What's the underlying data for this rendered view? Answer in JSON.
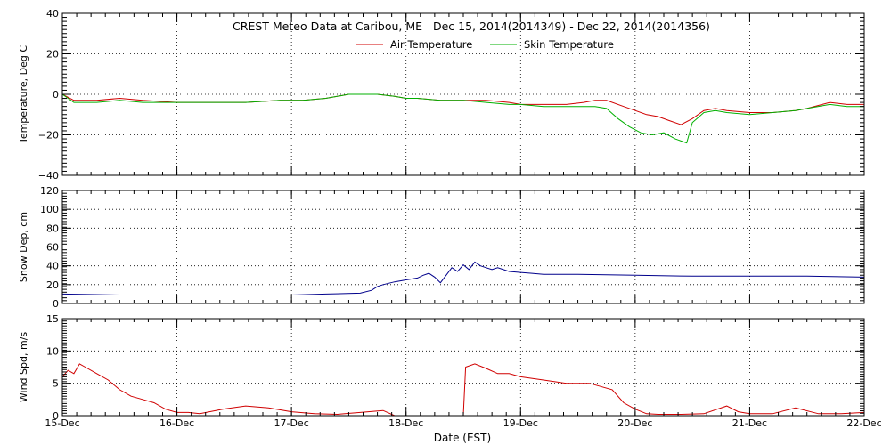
{
  "chart_data": {
    "type": "line",
    "title": "CREST Meteo Data at Caribou, ME   Dec 15, 2014(2014349) - Dec 22, 2014(2014356)",
    "xlabel": "Date (EST)",
    "x_tick_labels": [
      "15-Dec",
      "16-Dec",
      "17-Dec",
      "18-Dec",
      "19-Dec",
      "20-Dec",
      "21-Dec",
      "22-Dec"
    ],
    "xlim": [
      0,
      7
    ],
    "grid": "dotted",
    "legend_position": "top-center",
    "panels": [
      {
        "ylabel": "Temperature, Deg C",
        "ylim": [
          -40,
          40
        ],
        "yticks": [
          "40",
          "20",
          "0",
          "−20",
          "−40"
        ],
        "ytick_values": [
          40,
          20,
          0,
          -20,
          -40
        ],
        "series": [
          {
            "name": "Air Temperature",
            "color": "#d00000",
            "x": [
              0,
              0.1,
              0.3,
              0.5,
              0.7,
              1.0,
              1.3,
              1.6,
              1.9,
              2.1,
              2.3,
              2.5,
              2.6,
              2.75,
              2.9,
              3.0,
              3.1,
              3.3,
              3.5,
              3.7,
              3.9,
              4.0,
              4.2,
              4.4,
              4.55,
              4.65,
              4.75,
              4.9,
              5.0,
              5.1,
              5.2,
              5.3,
              5.4,
              5.5,
              5.6,
              5.7,
              5.8,
              6.0,
              6.2,
              6.4,
              6.5,
              6.7,
              6.85,
              7.0
            ],
            "y": [
              0,
              -3,
              -3,
              -2,
              -3,
              -4,
              -4,
              -4,
              -3,
              -3,
              -2,
              0,
              0,
              0,
              -1,
              -2,
              -2,
              -3,
              -3,
              -3,
              -4,
              -5,
              -5,
              -5,
              -4,
              -3,
              -3,
              -6,
              -8,
              -10,
              -11,
              -13,
              -15,
              -12,
              -8,
              -7,
              -8,
              -9,
              -9,
              -8,
              -7,
              -4,
              -5,
              -5
            ]
          },
          {
            "name": "Skin Temperature",
            "color": "#00b000",
            "x": [
              0,
              0.1,
              0.3,
              0.5,
              0.7,
              1.0,
              1.3,
              1.6,
              1.9,
              2.1,
              2.3,
              2.5,
              2.6,
              2.75,
              2.9,
              3.0,
              3.1,
              3.3,
              3.5,
              3.7,
              3.9,
              4.0,
              4.2,
              4.4,
              4.55,
              4.65,
              4.75,
              4.85,
              4.95,
              5.05,
              5.15,
              5.25,
              5.35,
              5.45,
              5.5,
              5.6,
              5.7,
              5.8,
              6.0,
              6.2,
              6.4,
              6.5,
              6.7,
              6.85,
              7.0
            ],
            "y": [
              0,
              -4,
              -4,
              -3,
              -4,
              -4,
              -4,
              -4,
              -3,
              -3,
              -2,
              0,
              0,
              0,
              -1,
              -2,
              -2,
              -3,
              -3,
              -4,
              -5,
              -5,
              -6,
              -6,
              -6,
              -6,
              -7,
              -12,
              -16,
              -19,
              -20,
              -19,
              -22,
              -24,
              -14,
              -9,
              -8,
              -9,
              -10,
              -9,
              -8,
              -7,
              -5,
              -6,
              -6
            ]
          }
        ]
      },
      {
        "ylabel": "Snow Dep, cm",
        "ylim": [
          0,
          120
        ],
        "yticks": [
          "120",
          "100",
          "80",
          "60",
          "40",
          "20",
          "0"
        ],
        "ytick_values": [
          120,
          100,
          80,
          60,
          40,
          20,
          0
        ],
        "series": [
          {
            "color": "#00008b",
            "x": [
              0,
              0.5,
              1.0,
              1.5,
              2.0,
              2.3,
              2.6,
              2.7,
              2.75,
              2.8,
              2.9,
              3.0,
              3.1,
              3.15,
              3.2,
              3.25,
              3.3,
              3.35,
              3.4,
              3.45,
              3.5,
              3.55,
              3.6,
              3.65,
              3.7,
              3.75,
              3.8,
              3.9,
              4.0,
              4.1,
              4.2,
              4.5,
              5.0,
              5.5,
              6.0,
              6.5,
              7.0
            ],
            "y": [
              10,
              9,
              9,
              9,
              9,
              10,
              11,
              14,
              18,
              20,
              23,
              25,
              27,
              30,
              32,
              28,
              22,
              30,
              38,
              34,
              41,
              36,
              44,
              40,
              38,
              36,
              38,
              34,
              33,
              32,
              31,
              31,
              30,
              29,
              29,
              29,
              28
            ]
          }
        ]
      },
      {
        "ylabel": "Wind Spd, m/s",
        "ylim": [
          0,
          15
        ],
        "yticks": [
          "15",
          "10",
          "5",
          "0"
        ],
        "ytick_values": [
          15,
          10,
          5,
          0
        ],
        "series": [
          {
            "color": "#d00000",
            "x": [
              0,
              0.05,
              0.1,
              0.15,
              0.2,
              0.3,
              0.4,
              0.5,
              0.6,
              0.7,
              0.8,
              0.9,
              1.0,
              1.1,
              1.2,
              1.4,
              1.6,
              1.8,
              2.0,
              2.2,
              2.4,
              2.6,
              2.8,
              2.9,
              3.0,
              3.2,
              3.4,
              3.5,
              3.52,
              3.6,
              3.7,
              3.8,
              3.9,
              4.0,
              4.2,
              4.4,
              4.6,
              4.7,
              4.8,
              4.9,
              5.0,
              5.1,
              5.2,
              5.4,
              5.6,
              5.8,
              5.9,
              6.0,
              6.2,
              6.4,
              6.6,
              6.8,
              7.0
            ],
            "y": [
              6,
              7,
              6.5,
              8,
              7.5,
              6.5,
              5.5,
              4,
              3,
              2.5,
              2,
              1,
              0.5,
              0.5,
              0.3,
              1,
              1.5,
              1.2,
              0.6,
              0.3,
              0.2,
              0.5,
              0.8,
              0,
              0,
              0,
              0,
              0,
              7.5,
              8,
              7.3,
              6.5,
              6.5,
              6,
              5.5,
              5,
              5,
              4.5,
              4,
              2,
              1,
              0.3,
              0.2,
              0.2,
              0.3,
              1.5,
              0.6,
              0.3,
              0.3,
              1.2,
              0.3,
              0.3,
              0.5
            ]
          }
        ]
      }
    ]
  }
}
